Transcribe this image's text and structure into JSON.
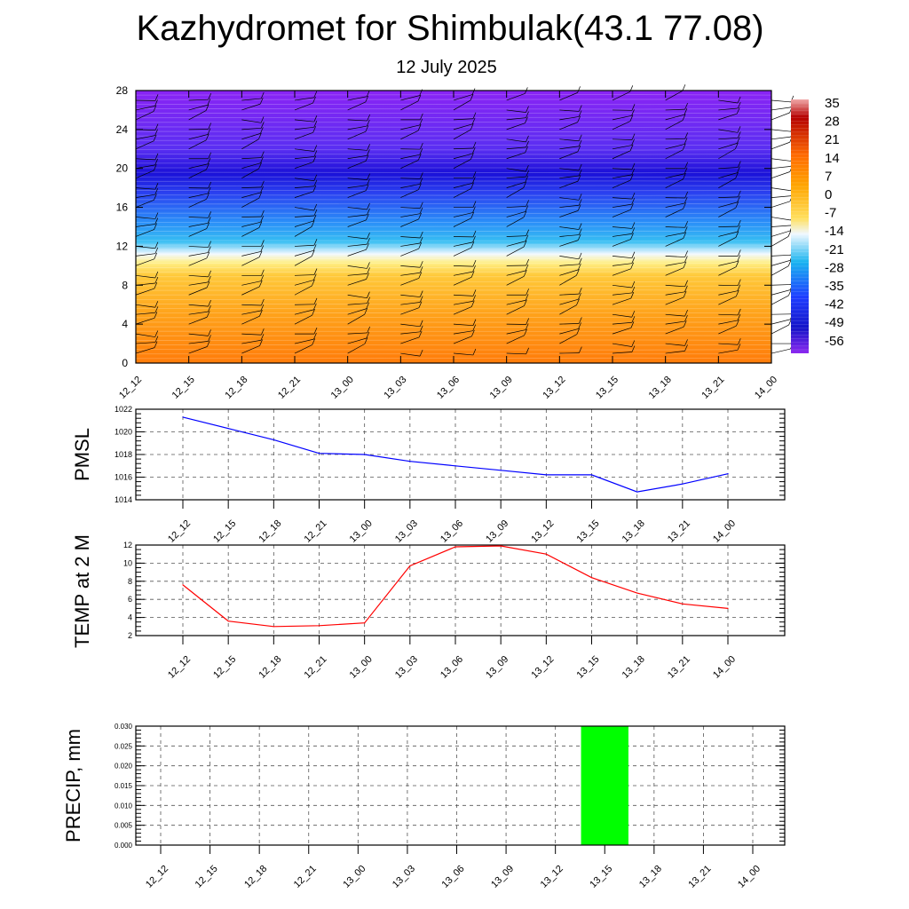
{
  "title": "Kazhydromet for Shimbulak(43.1 77.08)",
  "subtitle": "12 July 2025",
  "chart_data": [
    {
      "type": "heatmap",
      "ylim": [
        0,
        28
      ],
      "yticks": [
        0,
        4,
        8,
        12,
        16,
        20,
        24,
        28
      ],
      "categories": [
        "12_12",
        "12_15",
        "12_18",
        "12_21",
        "13_00",
        "13_03",
        "13_06",
        "13_09",
        "13_12",
        "13_15",
        "13_18",
        "13_21",
        "14_00"
      ],
      "colorbar": {
        "labels": [
          "35",
          "28",
          "21",
          "14",
          "7",
          "0",
          "-7",
          "-14",
          "-21",
          "-28",
          "-35",
          "-42",
          "-49",
          "-56"
        ],
        "colors": {
          "hot": "#b40000",
          "warm": "#ff6a00",
          "orange": "#ffa500",
          "yellow": "#ffe060",
          "pale": "#f0f8ff",
          "cyan": "#19b4f0",
          "blue": "#1e3cff",
          "deep": "#1414c8",
          "violet": "#8c28f0"
        }
      },
      "field_levels": [
        {
          "height": 0,
          "color": "#ff7c0a"
        },
        {
          "height": 5,
          "color": "#ffa21a"
        },
        {
          "height": 9,
          "color": "#ffc93a"
        },
        {
          "height": 10.3,
          "color": "#ffef86"
        },
        {
          "height": 11.2,
          "color": "#f2f8ff"
        },
        {
          "height": 12.5,
          "color": "#36bdf2"
        },
        {
          "height": 14.5,
          "color": "#2a8ef8"
        },
        {
          "height": 17.5,
          "color": "#2a40f0"
        },
        {
          "height": 19.5,
          "color": "#1a10d8"
        },
        {
          "height": 22,
          "color": "#5a2ef2"
        },
        {
          "height": 28,
          "color": "#8a24f4"
        }
      ],
      "grid": false
    },
    {
      "type": "line",
      "ylabel": "PMSL",
      "ylim": [
        1014,
        1022
      ],
      "yticks": [
        1014,
        1016,
        1018,
        1020,
        1022
      ],
      "categories": [
        "12_12",
        "12_15",
        "12_18",
        "12_21",
        "13_00",
        "13_03",
        "13_06",
        "13_09",
        "13_12",
        "13_15",
        "13_18",
        "13_21",
        "14_00"
      ],
      "series": [
        {
          "values": [
            1021.3,
            1020.3,
            1019.3,
            1018.1,
            1018.0,
            1017.4,
            1017.0,
            1016.6,
            1016.2,
            1016.2,
            1014.7,
            1015.4,
            1016.3
          ],
          "color": "#0000ff"
        }
      ],
      "grid": true
    },
    {
      "type": "line",
      "ylabel": "TEMP at 2 M",
      "ylim": [
        2,
        12
      ],
      "yticks": [
        2,
        4,
        6,
        8,
        10,
        12
      ],
      "categories": [
        "12_12",
        "12_15",
        "12_18",
        "12_21",
        "13_00",
        "13_03",
        "13_06",
        "13_09",
        "13_12",
        "13_15",
        "13_18",
        "13_21",
        "14_00"
      ],
      "series": [
        {
          "values": [
            7.6,
            3.6,
            3.0,
            3.1,
            3.4,
            9.7,
            11.8,
            11.9,
            11.0,
            8.4,
            6.7,
            5.5,
            5.0
          ],
          "color": "#ff0000"
        }
      ],
      "grid": true
    },
    {
      "type": "bar",
      "ylabel": "PRECIP, mm",
      "ylim": [
        0,
        0.03
      ],
      "ytick_labels": [
        "0.000",
        "0.005",
        "0.010",
        "0.015",
        "0.020",
        "0.025",
        "0.030"
      ],
      "categories": [
        "12_12",
        "12_15",
        "12_18",
        "12_21",
        "13_00",
        "13_03",
        "13_06",
        "13_09",
        "13_12",
        "13_15",
        "13_18",
        "13_21",
        "14_00"
      ],
      "values": [
        0,
        0,
        0,
        0,
        0,
        0,
        0,
        0,
        0,
        0.03,
        0,
        0,
        0
      ],
      "bar_color": "#00ff00",
      "grid": true
    }
  ]
}
